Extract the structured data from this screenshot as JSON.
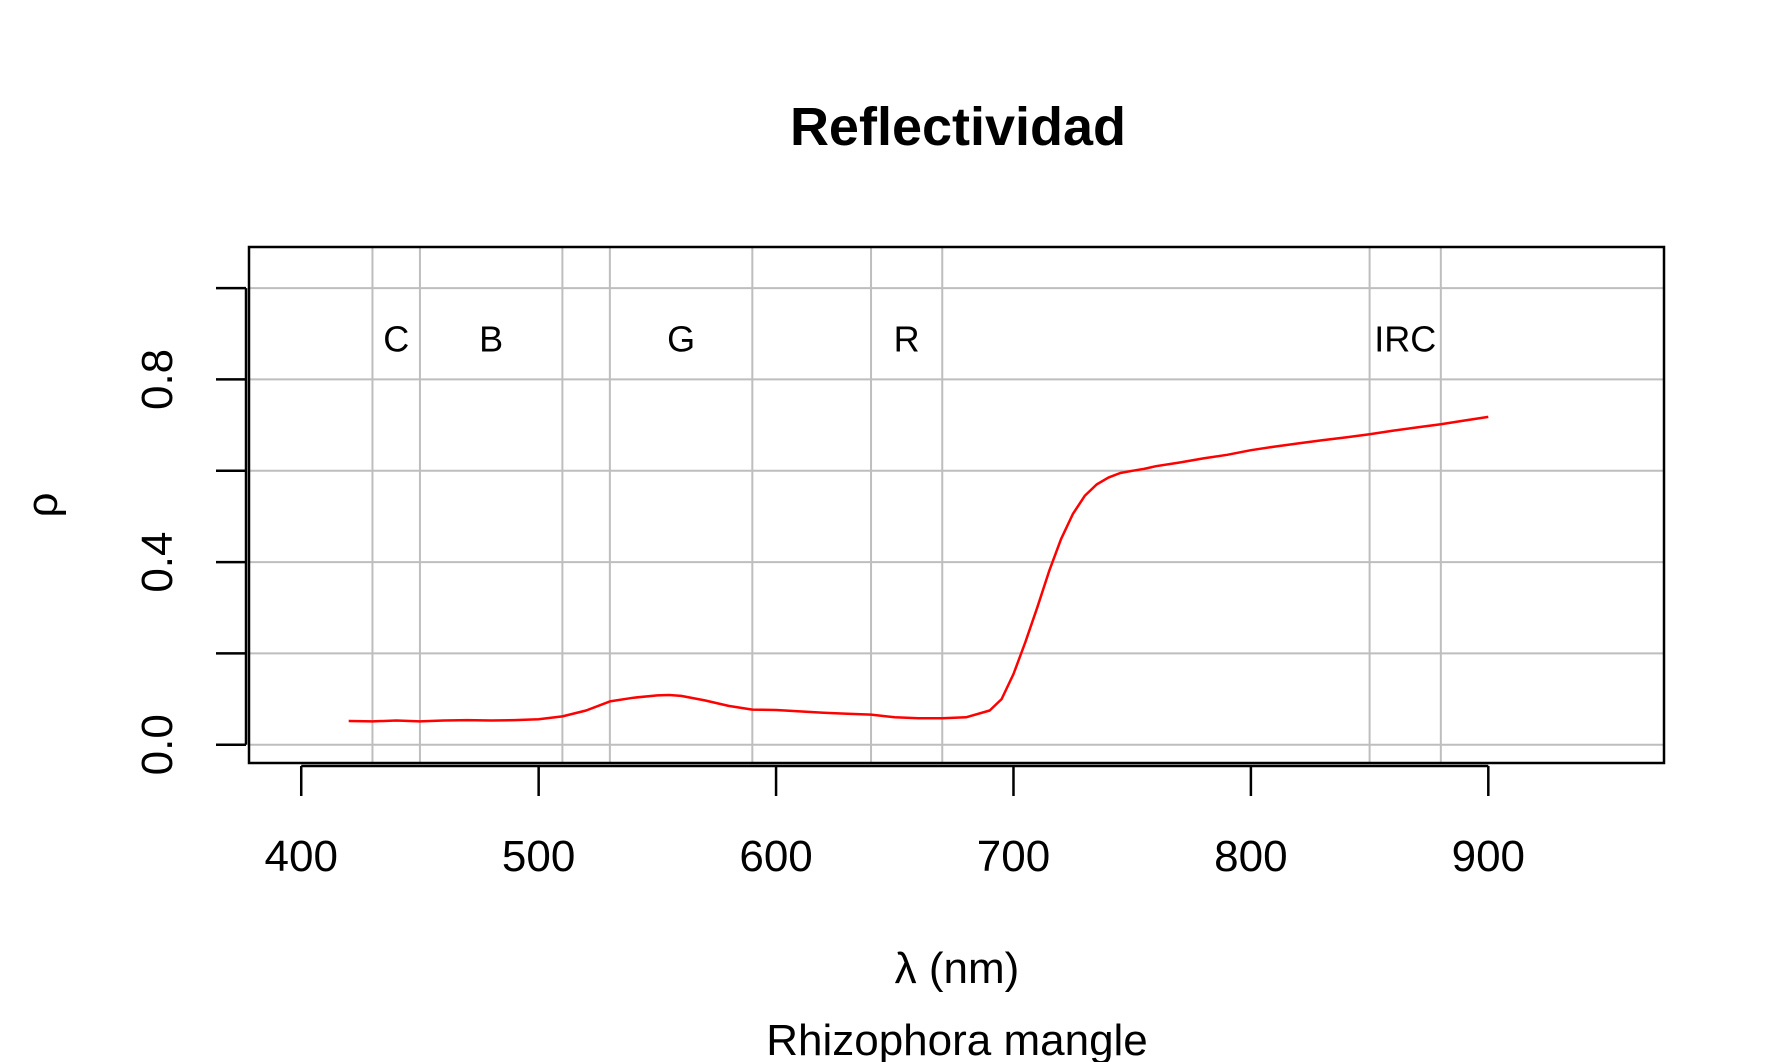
{
  "chart_data": {
    "type": "line",
    "title": "Reflectividad",
    "xlabel": "λ (nm)",
    "ylabel": "ρ",
    "subtitle": "Rhizophora mangle",
    "xlim": [
      378,
      974
    ],
    "ylim": [
      -0.04,
      1.09
    ],
    "x_ticks": [
      400,
      500,
      600,
      700,
      800,
      900
    ],
    "y_ticks": [
      0.0,
      0.2,
      0.4,
      0.6,
      0.8,
      1.0
    ],
    "y_tick_labels": [
      {
        "value": 0.0,
        "label": "0.0"
      },
      {
        "value": 0.4,
        "label": "0.4"
      },
      {
        "value": 0.8,
        "label": "0.8"
      }
    ],
    "grid": true,
    "grid_color": "#bebebe",
    "line_color": "#ff0000",
    "band_boundaries": [
      430,
      450,
      510,
      530,
      590,
      640,
      670,
      850,
      880
    ],
    "band_labels": [
      {
        "label": "C",
        "x": 440,
        "y": 0.89
      },
      {
        "label": "B",
        "x": 480,
        "y": 0.89
      },
      {
        "label": "G",
        "x": 560,
        "y": 0.89
      },
      {
        "label": "R",
        "x": 655,
        "y": 0.89
      },
      {
        "label": "IRC",
        "x": 865,
        "y": 0.89
      }
    ],
    "series": [
      {
        "x": [
          420,
          430,
          440,
          450,
          460,
          470,
          480,
          490,
          500,
          510,
          520,
          530,
          540,
          550,
          555,
          560,
          570,
          580,
          590,
          600,
          610,
          620,
          630,
          640,
          650,
          660,
          670,
          680,
          690,
          695,
          700,
          705,
          710,
          715,
          720,
          725,
          730,
          735,
          740,
          745,
          750,
          755,
          760,
          770,
          780,
          790,
          800,
          810,
          820,
          830,
          840,
          850,
          860,
          870,
          880,
          890,
          900
        ],
        "y": [
          0.052,
          0.051,
          0.053,
          0.051,
          0.053,
          0.054,
          0.053,
          0.054,
          0.056,
          0.062,
          0.075,
          0.095,
          0.103,
          0.108,
          0.109,
          0.107,
          0.097,
          0.085,
          0.077,
          0.076,
          0.073,
          0.07,
          0.068,
          0.066,
          0.06,
          0.058,
          0.058,
          0.06,
          0.075,
          0.1,
          0.155,
          0.225,
          0.3,
          0.38,
          0.45,
          0.505,
          0.545,
          0.57,
          0.585,
          0.595,
          0.6,
          0.604,
          0.61,
          0.618,
          0.627,
          0.635,
          0.645,
          0.653,
          0.66,
          0.667,
          0.673,
          0.68,
          0.688,
          0.695,
          0.702,
          0.71,
          0.718
        ]
      }
    ]
  }
}
